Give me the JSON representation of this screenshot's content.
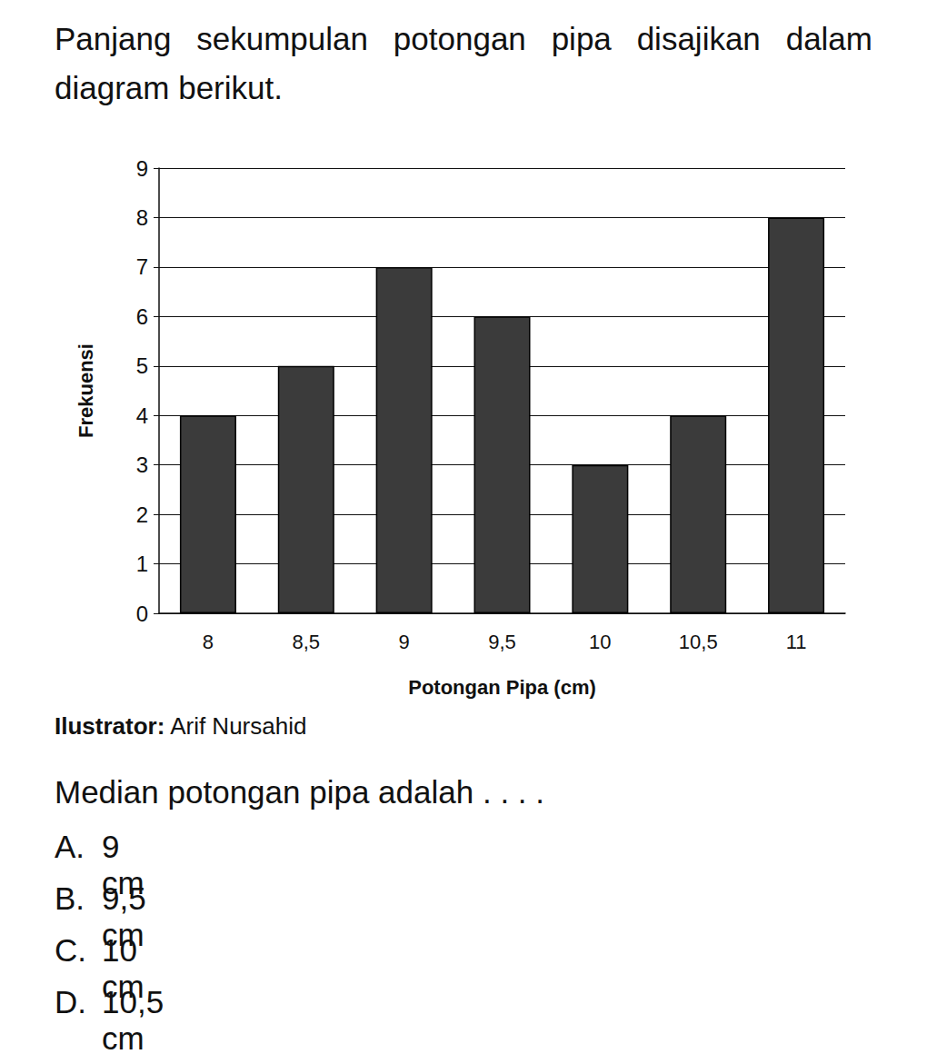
{
  "intro": "Panjang sekumpulan potongan pipa disajikan dalam diagram berikut.",
  "chart_data": {
    "type": "bar",
    "categories": [
      "8",
      "8,5",
      "9",
      "9,5",
      "10",
      "10,5",
      "11"
    ],
    "values": [
      4,
      5,
      7,
      6,
      3,
      4,
      8
    ],
    "color": "#3b3b3b",
    "x_label": "Potongan Pipa (cm)",
    "y_label": "Frekuensi",
    "ylim": [
      0,
      9
    ],
    "yticks": [
      0,
      1,
      2,
      3,
      4,
      5,
      6,
      7,
      8,
      9
    ],
    "grid": true
  },
  "credit_label": "Ilustrator:",
  "credit_name": "Arif Nursahid",
  "question": "Median potongan pipa adalah . . . .",
  "options": [
    {
      "letter": "A.",
      "text": "9 cm"
    },
    {
      "letter": "B.",
      "text": "9,5 cm"
    },
    {
      "letter": "C.",
      "text": "10 cm"
    },
    {
      "letter": "D.",
      "text": "10,5 cm"
    }
  ]
}
